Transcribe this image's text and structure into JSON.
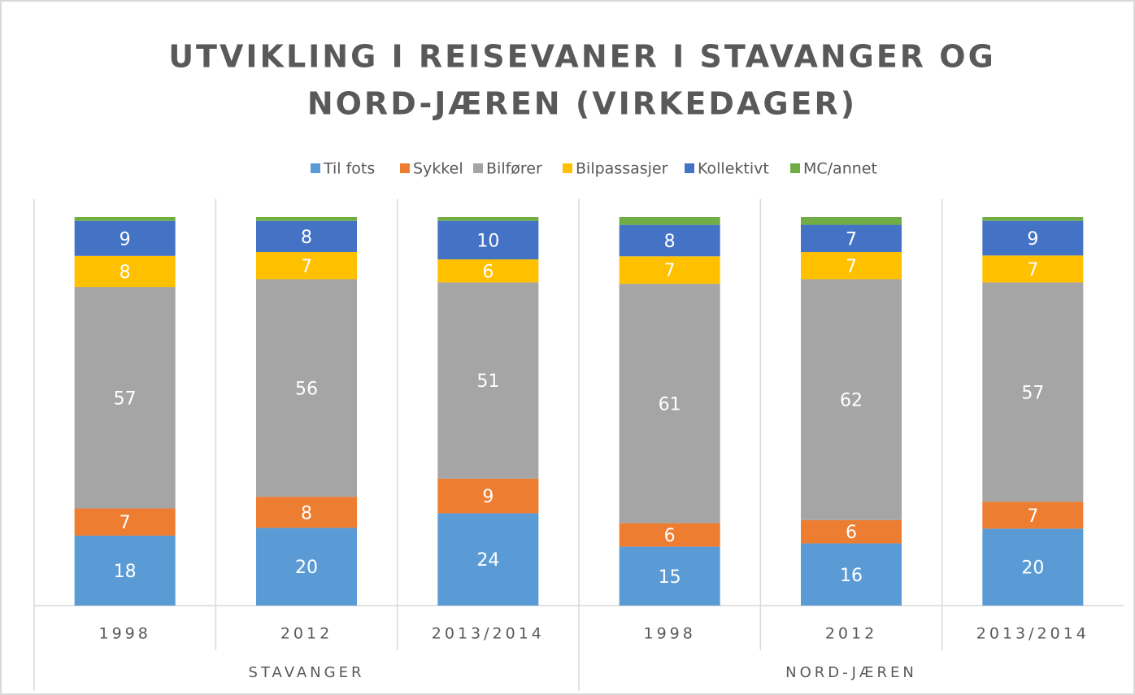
{
  "chart_data": {
    "type": "bar",
    "stack": "percent",
    "title": [
      "UTVIKLING I REISEVANER I STAVANGER OG",
      "NORD-JÆREN (VIRKEDAGER)"
    ],
    "groups": [
      {
        "label": "STAVANGER",
        "categories": [
          "1998",
          "2012",
          "2013/2014"
        ]
      },
      {
        "label": "NORD-JÆREN",
        "categories": [
          "1998",
          "2012",
          "2013/2014"
        ]
      }
    ],
    "legend": "top",
    "series": [
      {
        "name": "Til fots",
        "color": "#5b9bd5",
        "values": [
          18,
          20,
          24,
          15,
          16,
          20
        ]
      },
      {
        "name": "Sykkel",
        "color": "#ed7d31",
        "values": [
          7,
          8,
          9,
          6,
          6,
          7
        ]
      },
      {
        "name": "Bilfører",
        "color": "#a5a5a5",
        "values": [
          57,
          56,
          51,
          61,
          62,
          57
        ]
      },
      {
        "name": "Bilpassasjer",
        "color": "#ffc000",
        "values": [
          8,
          7,
          6,
          7,
          7,
          7
        ]
      },
      {
        "name": "Kollektivt",
        "color": "#4472c4",
        "values": [
          9,
          8,
          10,
          8,
          7,
          9
        ]
      },
      {
        "name": "MC/annet",
        "color": "#70ad47",
        "values": [
          1,
          1,
          1,
          2,
          2,
          1
        ],
        "show_labels": false
      }
    ]
  }
}
